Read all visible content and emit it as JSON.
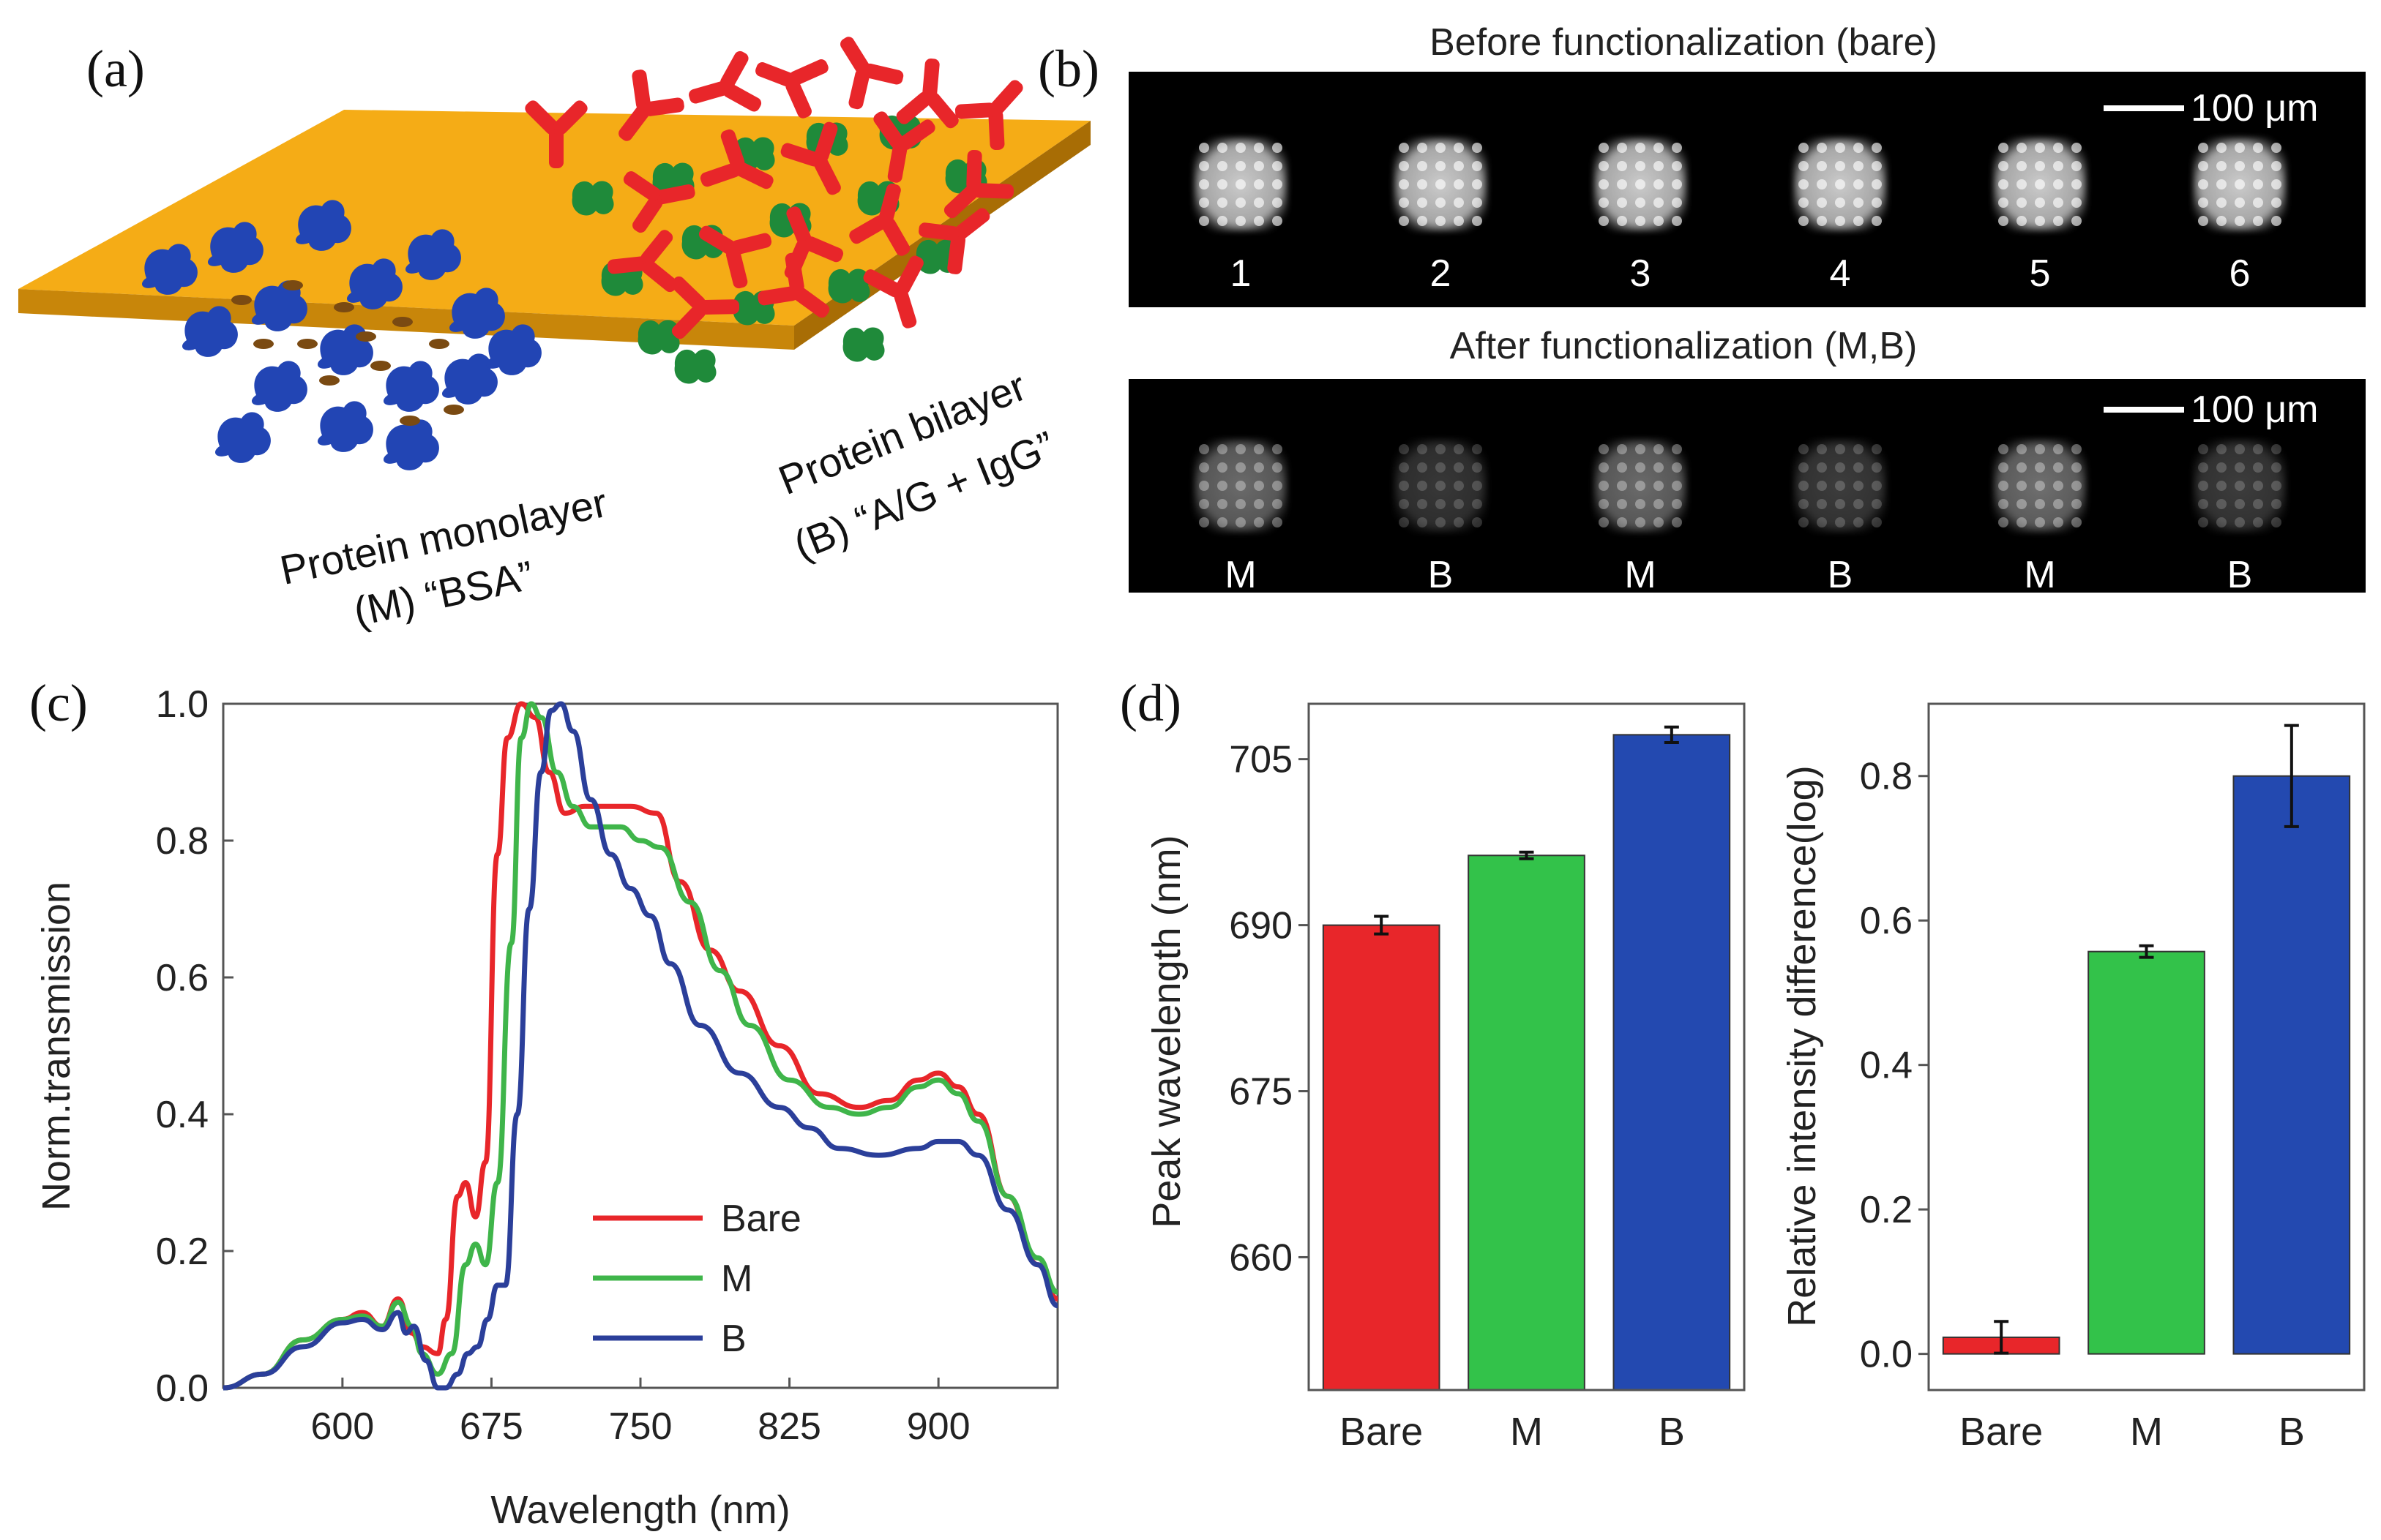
{
  "panels": {
    "a": {
      "label": "(a)",
      "monolayer_line1": "Protein monolayer",
      "monolayer_line2": "(M) “BSA”",
      "bilayer_line1": "Protein bilayer",
      "bilayer_line2": "(B) “A/G + IgG”"
    },
    "b": {
      "label": "(b)",
      "before_title": "Before functionalization (bare)",
      "after_title": "After functionalization (M,B)",
      "scale_label": "100 μm",
      "before_labels": [
        "1",
        "2",
        "3",
        "4",
        "5",
        "6"
      ],
      "after_labels": [
        "M",
        "B",
        "M",
        "B",
        "M",
        "B"
      ],
      "before_brightness": [
        0.8,
        0.8,
        0.8,
        0.8,
        0.8,
        0.8
      ],
      "after_brightness": [
        0.42,
        0.22,
        0.42,
        0.24,
        0.44,
        0.24
      ]
    },
    "c": {
      "label": "(c)"
    },
    "d": {
      "label": "(d)"
    }
  },
  "chart_data": [
    {
      "type": "line",
      "panel": "c",
      "xlabel": "Wavelength (nm)",
      "ylabel": "Norm.transmission",
      "xlim": [
        540,
        960
      ],
      "ylim": [
        0.0,
        1.0
      ],
      "xticks": [
        "600",
        "675",
        "750",
        "825",
        "900"
      ],
      "yticks": [
        "0.0",
        "0.2",
        "0.4",
        "0.6",
        "0.8",
        "1.0"
      ],
      "legend_position": "center-bottom",
      "series": [
        {
          "name": "Bare",
          "color": "#e8262a",
          "x": [
            540,
            560,
            580,
            600,
            610,
            620,
            628,
            635,
            640,
            648,
            652,
            658,
            662,
            667,
            672,
            678,
            683,
            690,
            697,
            704,
            712,
            722,
            735,
            745,
            758,
            770,
            785,
            800,
            820,
            840,
            860,
            875,
            890,
            900,
            910,
            920,
            935,
            950,
            960
          ],
          "y": [
            0,
            0.02,
            0.07,
            0.1,
            0.11,
            0.09,
            0.13,
            0.08,
            0.06,
            0.05,
            0.1,
            0.28,
            0.3,
            0.25,
            0.33,
            0.78,
            0.95,
            1.0,
            0.98,
            0.9,
            0.84,
            0.85,
            0.85,
            0.85,
            0.84,
            0.74,
            0.64,
            0.58,
            0.5,
            0.43,
            0.41,
            0.42,
            0.45,
            0.46,
            0.44,
            0.4,
            0.28,
            0.18,
            0.13
          ]
        },
        {
          "name": "M",
          "color": "#3fb54a",
          "x": [
            540,
            560,
            580,
            600,
            610,
            620,
            628,
            635,
            640,
            648,
            655,
            662,
            667,
            672,
            678,
            685,
            690,
            695,
            700,
            708,
            716,
            725,
            740,
            750,
            760,
            775,
            790,
            805,
            825,
            845,
            860,
            875,
            890,
            900,
            910,
            920,
            935,
            950,
            960
          ],
          "y": [
            0,
            0.02,
            0.07,
            0.1,
            0.105,
            0.09,
            0.125,
            0.09,
            0.05,
            0.02,
            0.05,
            0.18,
            0.21,
            0.18,
            0.3,
            0.65,
            0.95,
            1.0,
            0.98,
            0.9,
            0.85,
            0.82,
            0.82,
            0.8,
            0.79,
            0.71,
            0.61,
            0.53,
            0.45,
            0.41,
            0.4,
            0.41,
            0.44,
            0.45,
            0.43,
            0.39,
            0.28,
            0.19,
            0.14
          ]
        },
        {
          "name": "B",
          "color": "#2b3f9a",
          "x": [
            540,
            560,
            580,
            600,
            610,
            620,
            628,
            632,
            636,
            642,
            648,
            652,
            658,
            663,
            668,
            673,
            678,
            682,
            688,
            694,
            700,
            705,
            710,
            716,
            725,
            735,
            745,
            755,
            765,
            780,
            800,
            820,
            835,
            850,
            870,
            890,
            900,
            910,
            920,
            935,
            950,
            960
          ],
          "y": [
            0,
            0.02,
            0.06,
            0.095,
            0.1,
            0.085,
            0.11,
            0.08,
            0.09,
            0.04,
            0.0,
            0.0,
            0.02,
            0.05,
            0.06,
            0.1,
            0.15,
            0.15,
            0.4,
            0.7,
            0.9,
            0.99,
            1.0,
            0.96,
            0.86,
            0.78,
            0.73,
            0.69,
            0.62,
            0.53,
            0.46,
            0.41,
            0.38,
            0.35,
            0.34,
            0.35,
            0.36,
            0.36,
            0.34,
            0.26,
            0.18,
            0.12
          ]
        }
      ]
    },
    {
      "type": "bar",
      "panel": "d-left",
      "xlabel": "",
      "ylabel": "Peak wavelength (nm)",
      "ylim": [
        648,
        710
      ],
      "yticks": [
        "660",
        "675",
        "690",
        "705"
      ],
      "categories": [
        "Bare",
        "M",
        "B"
      ],
      "values": [
        690,
        696.3,
        707.2
      ],
      "errors": [
        0.8,
        0.3,
        0.7
      ],
      "colors": [
        "#e8262a",
        "#33c24a",
        "#2349b0"
      ]
    },
    {
      "type": "bar",
      "panel": "d-right",
      "xlabel": "",
      "ylabel": "Relative intensity difference(log)",
      "ylim": [
        -0.05,
        0.9
      ],
      "yticks": [
        "0.0",
        "0.2",
        "0.4",
        "0.6",
        "0.8"
      ],
      "categories": [
        "Bare",
        "M",
        "B"
      ],
      "values": [
        0.023,
        0.557,
        0.8
      ],
      "errors": [
        0.022,
        0.008,
        0.07
      ],
      "colors": [
        "#e8262a",
        "#33c24a",
        "#2349b0"
      ]
    }
  ]
}
